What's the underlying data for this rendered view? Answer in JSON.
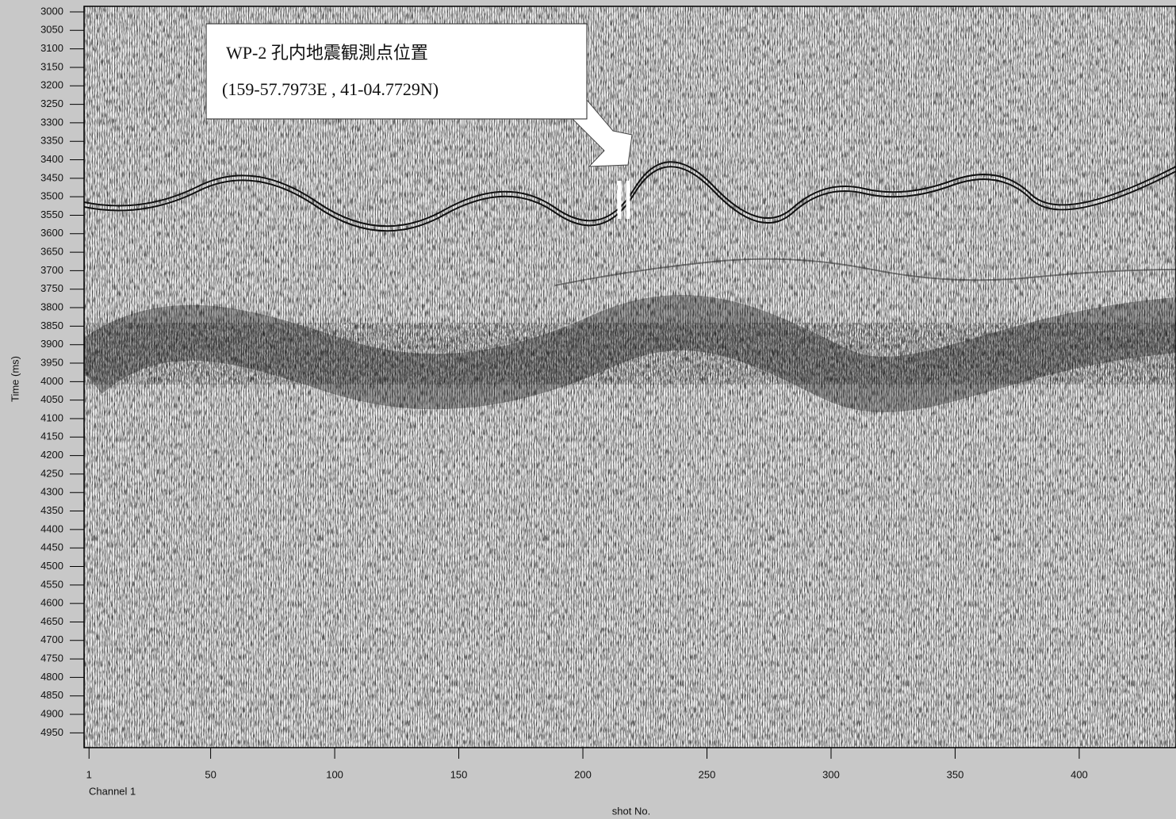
{
  "chart_data": {
    "type": "seismic-section",
    "ylabel": "Time (ms)",
    "xlabel": "shot No.",
    "channel_label": "Channel 1",
    "annotation": [
      "WP-2 孔内地震観測点位置",
      "(159-57.7973E , 41-04.7729N)"
    ],
    "ylim": [
      2985,
      4990
    ],
    "yticks": [
      3000,
      3050,
      3100,
      3150,
      3200,
      3250,
      3300,
      3350,
      3400,
      3450,
      3500,
      3550,
      3600,
      3650,
      3700,
      3750,
      3800,
      3850,
      3900,
      3950,
      4000,
      4050,
      4100,
      4150,
      4200,
      4250,
      4300,
      4350,
      4400,
      4450,
      4500,
      4550,
      4600,
      4650,
      4700,
      4750,
      4800,
      4850,
      4900,
      4950
    ],
    "xlim": [
      -1,
      439
    ],
    "xticks": [
      1,
      50,
      100,
      150,
      200,
      250,
      300,
      350,
      400
    ]
  }
}
